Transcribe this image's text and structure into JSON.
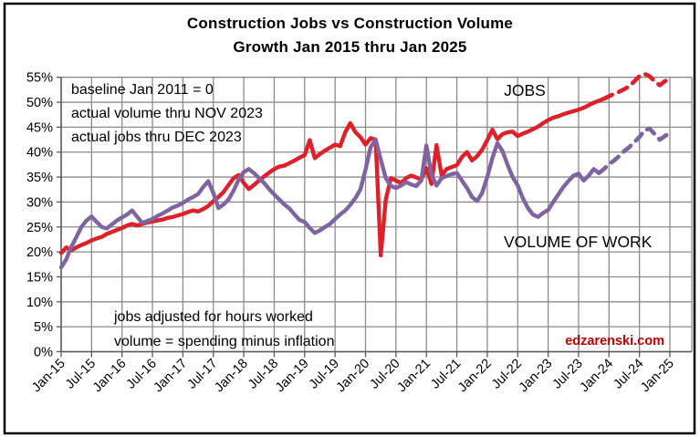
{
  "title": {
    "line1": "Construction Jobs vs Construction Volume",
    "line2": "Growth Jan 2015 thru Jan 2025"
  },
  "annotations": {
    "top_left": [
      "baseline Jan 2011 = 0",
      "actual volume thru NOV 2023",
      "actual jobs thru DEC 2023"
    ],
    "bottom": [
      "jobs adjusted for hours worked",
      "volume = spending minus inflation"
    ],
    "jobs_label": "JOBS",
    "volume_label": "VOLUME OF WORK",
    "watermark": "edzarenski.com"
  },
  "colors": {
    "jobs": "#E02028",
    "volume": "#8064A2",
    "grid": "#8C8C8C",
    "axis": "#595959",
    "watermark": "#C00000",
    "text": "#000000",
    "background": "#FFFFFF"
  },
  "chart_data": {
    "type": "line",
    "title": "Construction Jobs vs Construction Volume — Growth Jan 2015 thru Jan 2025",
    "baseline_note": "baseline Jan 2011 = 0",
    "x_interval": "monthly",
    "x_start": "Jan-2015",
    "x_end": "Jan-2025",
    "n_points": 121,
    "grid": true,
    "ylim": [
      0,
      55
    ],
    "ystep": 5,
    "y_tick_labels": [
      "55%",
      "50%",
      "45%",
      "40%",
      "35%",
      "30%",
      "25%",
      "20%",
      "15%",
      "10%",
      "5%",
      "0%"
    ],
    "x_tick_labels": [
      "Jan-15",
      "Jul-15",
      "Jan-16",
      "Jul-16",
      "Jan-17",
      "Jul-17",
      "Jan-18",
      "Jul-18",
      "Jan-19",
      "Jul-19",
      "Jan-20",
      "Jul-20",
      "Jan-21",
      "Jul-21",
      "Jan-22",
      "Jul-22",
      "Jan-23",
      "Jul-23",
      "Jan-24",
      "Jul-24",
      "Jan-25"
    ],
    "series": [
      {
        "name": "JOBS",
        "color": "#E02028",
        "actual_through": "DEC 2023",
        "solid_through_index": 107,
        "values": [
          19.8,
          20.9,
          20.3,
          20.9,
          21.4,
          21.8,
          22.3,
          22.7,
          23.0,
          23.6,
          24.0,
          24.4,
          24.8,
          25.3,
          25.6,
          25.3,
          25.6,
          25.9,
          26.1,
          26.3,
          26.5,
          26.8,
          27.0,
          27.3,
          27.6,
          28.0,
          28.3,
          28.1,
          28.6,
          29.2,
          30.2,
          31.0,
          32.0,
          33.4,
          34.8,
          35.4,
          33.8,
          32.6,
          33.4,
          34.3,
          35.1,
          35.9,
          36.6,
          37.1,
          37.3,
          37.8,
          38.3,
          38.9,
          39.4,
          42.4,
          38.8,
          39.6,
          40.3,
          40.9,
          41.5,
          41.2,
          44.0,
          45.8,
          44.0,
          43.0,
          41.5,
          42.8,
          42.5,
          19.3,
          30.5,
          34.8,
          34.3,
          33.8,
          34.8,
          35.3,
          34.9,
          34.5,
          36.8,
          33.6,
          41.4,
          35.3,
          36.6,
          37.0,
          37.4,
          39.0,
          40.0,
          38.3,
          39.2,
          40.5,
          42.4,
          44.5,
          42.6,
          43.6,
          44.0,
          44.1,
          43.2,
          43.7,
          44.1,
          44.6,
          45.1,
          45.8,
          46.4,
          46.9,
          47.2,
          47.6,
          47.9,
          48.2,
          48.5,
          48.9,
          49.4,
          49.9,
          50.3,
          50.7,
          51.2,
          51.7,
          52.1,
          52.6,
          53.2,
          54.2,
          55.2,
          55.7,
          55.2,
          54.2,
          53.4,
          54.2,
          54.7
        ]
      },
      {
        "name": "VOLUME OF WORK",
        "color": "#8064A2",
        "actual_through": "NOV 2023",
        "solid_through_index": 106,
        "values": [
          16.9,
          18.5,
          21.0,
          23.0,
          25.0,
          26.3,
          27.1,
          26.0,
          25.0,
          24.7,
          25.5,
          26.3,
          26.9,
          27.5,
          28.3,
          27.0,
          25.8,
          26.2,
          26.6,
          27.2,
          27.7,
          28.3,
          28.9,
          29.3,
          29.8,
          30.5,
          31.0,
          31.6,
          33.0,
          34.2,
          31.8,
          28.8,
          29.5,
          30.5,
          32.3,
          34.5,
          36.0,
          36.6,
          35.8,
          34.8,
          33.8,
          32.6,
          31.5,
          30.5,
          29.5,
          28.7,
          27.5,
          26.4,
          26.0,
          24.8,
          23.8,
          24.3,
          25.0,
          25.6,
          26.6,
          27.5,
          28.3,
          29.4,
          30.8,
          32.5,
          36.5,
          41.0,
          42.5,
          38.5,
          34.8,
          33.2,
          32.8,
          33.3,
          34.0,
          33.5,
          33.2,
          34.3,
          41.3,
          35.5,
          33.3,
          34.8,
          35.2,
          35.6,
          35.8,
          34.3,
          32.8,
          31.0,
          30.2,
          31.8,
          35.0,
          38.8,
          41.8,
          40.2,
          37.5,
          35.0,
          33.3,
          30.8,
          28.8,
          27.5,
          27.0,
          27.8,
          28.4,
          30.0,
          31.5,
          33.0,
          34.2,
          35.3,
          35.7,
          34.3,
          35.3,
          36.6,
          35.8,
          36.6,
          37.6,
          38.3,
          39.2,
          40.2,
          41.0,
          42.0,
          43.0,
          44.4,
          44.7,
          43.6,
          42.5,
          43.2,
          43.9
        ]
      }
    ]
  }
}
